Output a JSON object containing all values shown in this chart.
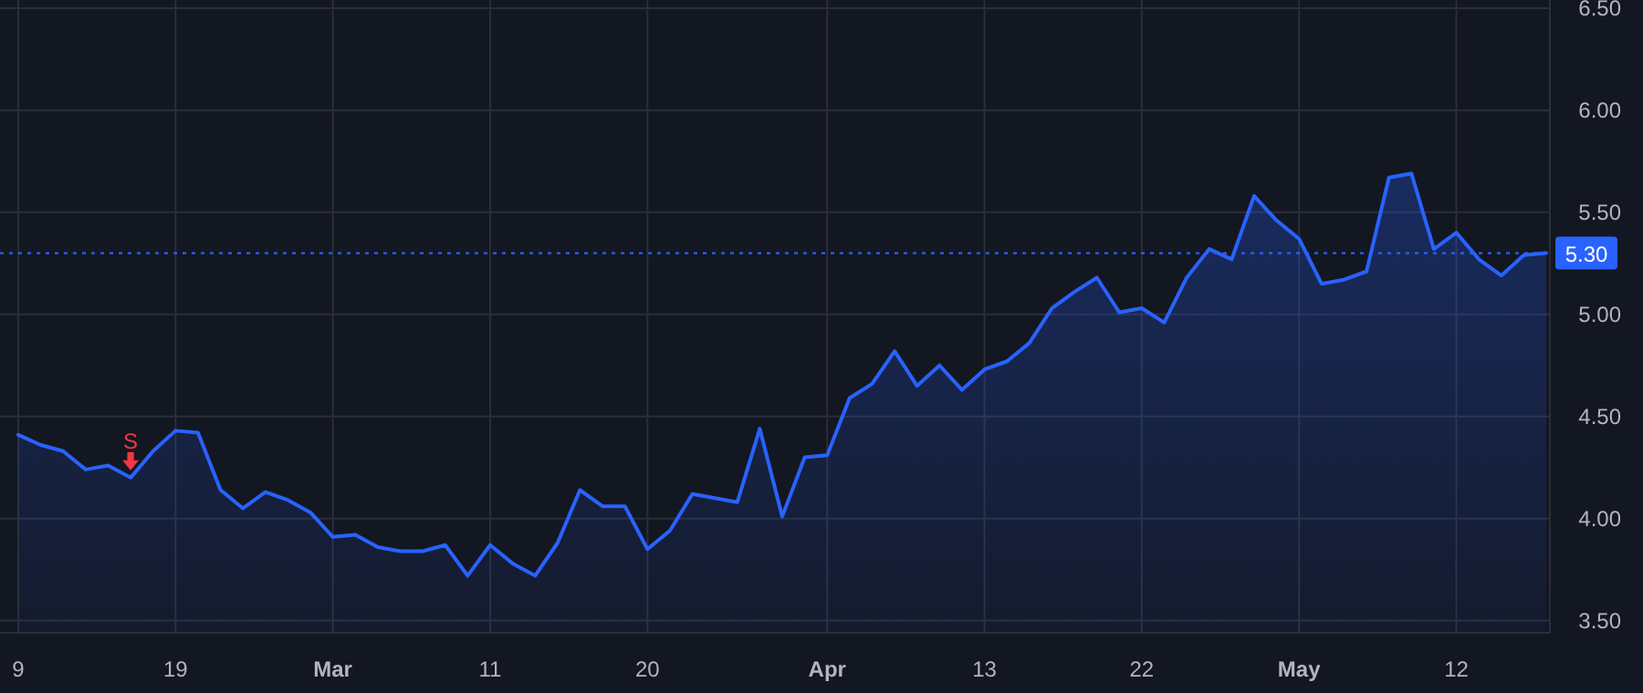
{
  "chart_data": {
    "type": "area",
    "categories": [
      "9",
      null,
      null,
      null,
      null,
      null,
      null,
      "19",
      null,
      null,
      null,
      null,
      null,
      null,
      "Mar",
      null,
      null,
      null,
      null,
      null,
      null,
      "11",
      null,
      null,
      null,
      null,
      null,
      null,
      "20",
      null,
      null,
      null,
      null,
      null,
      null,
      null,
      "Apr",
      null,
      null,
      null,
      null,
      null,
      null,
      "13",
      null,
      null,
      null,
      null,
      null,
      null,
      "22",
      null,
      null,
      null,
      null,
      null,
      null,
      "May",
      null,
      null,
      null,
      null,
      null,
      null,
      "12",
      null,
      null,
      null,
      null
    ],
    "series": [
      {
        "color": "#2962ff",
        "values": [
          4.41,
          4.36,
          4.33,
          4.24,
          4.26,
          4.2,
          4.33,
          4.43,
          4.42,
          4.14,
          4.05,
          4.13,
          4.09,
          4.03,
          3.91,
          3.92,
          3.86,
          3.84,
          3.84,
          3.87,
          3.72,
          3.87,
          3.78,
          3.72,
          3.88,
          4.14,
          4.06,
          4.06,
          3.85,
          3.94,
          4.12,
          4.1,
          4.08,
          4.44,
          4.01,
          4.3,
          4.31,
          4.59,
          4.66,
          4.82,
          4.65,
          4.75,
          4.63,
          4.73,
          4.77,
          4.86,
          5.03,
          5.11,
          5.18,
          5.01,
          5.03,
          4.96,
          5.18,
          5.32,
          5.27,
          5.58,
          5.46,
          5.37,
          5.15,
          5.17,
          5.21,
          5.67,
          5.69,
          5.32,
          5.4,
          5.27,
          5.19,
          5.29,
          5.3
        ]
      }
    ],
    "ylim": [
      3.44,
      6.54
    ],
    "yticks": [
      {
        "value": 3.5,
        "label": "3.50"
      },
      {
        "value": 4,
        "label": "4.00"
      },
      {
        "value": 4.5,
        "label": "4.50"
      },
      {
        "value": 5,
        "label": "5.00"
      },
      {
        "value": 5.5,
        "label": "5.50"
      },
      {
        "value": 6,
        "label": "6.00"
      },
      {
        "value": 6.5,
        "label": "6.50"
      }
    ],
    "grid": true,
    "ref_lines": [
      {
        "axis": "y",
        "value": 5.3,
        "label": "5.30",
        "color": "#2962ff",
        "line_style": "dotted"
      }
    ],
    "annotations": [
      {
        "text": "S",
        "y": 4.2
      }
    ]
  }
}
